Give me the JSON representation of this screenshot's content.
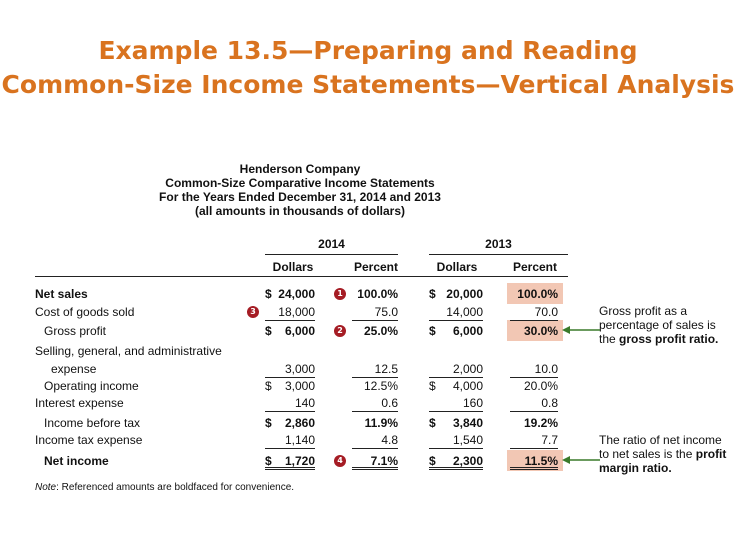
{
  "slide": {
    "title_line1": "Example 13.5—Preparing and Reading",
    "title_line2": "Common-Size Income Statements—Vertical Analysis"
  },
  "statement": {
    "company": "Henderson Company",
    "title": "Common-Size Comparative Income Statements",
    "period": "For the Years Ended December 31, 2014 and 2013",
    "units": "(all amounts in thousands of dollars)"
  },
  "columns": {
    "year_2014": "2014",
    "year_2013": "2013",
    "dollars": "Dollars",
    "percent": "Percent"
  },
  "rows": [
    {
      "label": "Net sales",
      "d14": "24,000",
      "p14": "100.0%",
      "d13": "20,000",
      "p13": "100.0%"
    },
    {
      "label": "Cost of goods sold",
      "d14": "18,000",
      "p14": "75.0",
      "d13": "14,000",
      "p13": "70.0"
    },
    {
      "label": "Gross profit",
      "d14": "6,000",
      "p14": "25.0%",
      "d13": "6,000",
      "p13": "30.0%"
    },
    {
      "label": "Selling, general, and administrative"
    },
    {
      "label": "expense",
      "d14": "3,000",
      "p14": "12.5",
      "d13": "2,000",
      "p13": "10.0"
    },
    {
      "label": "Operating income",
      "d14": "3,000",
      "p14": "12.5%",
      "d13": "4,000",
      "p13": "20.0%"
    },
    {
      "label": "Interest expense",
      "d14": "140",
      "p14": "0.6",
      "d13": "160",
      "p13": "0.8"
    },
    {
      "label": "Income before tax",
      "d14": "2,860",
      "p14": "11.9%",
      "d13": "3,840",
      "p13": "19.2%"
    },
    {
      "label": "Income tax expense",
      "d14": "1,140",
      "p14": "4.8",
      "d13": "1,540",
      "p13": "7.7"
    },
    {
      "label": "Net income",
      "d14": "1,720",
      "p14": "7.1%",
      "d13": "2,300",
      "p13": "11.5%"
    }
  ],
  "currency": "$",
  "markers": [
    "1",
    "2",
    "3",
    "4"
  ],
  "note": {
    "prefix": "Note",
    "text": ": Referenced amounts are boldfaced for convenience."
  },
  "callouts": {
    "gross_pre": "Gross profit as a percentage of sales is the ",
    "gross_term": "gross profit ratio.",
    "net_pre": "The ratio of net income to net sales is the ",
    "net_term": "profit margin ratio."
  },
  "colors": {
    "title": "#d9731f",
    "highlight": "#f2c7b4",
    "marker": "#a51c24",
    "arrow": "#3a7a2a"
  }
}
